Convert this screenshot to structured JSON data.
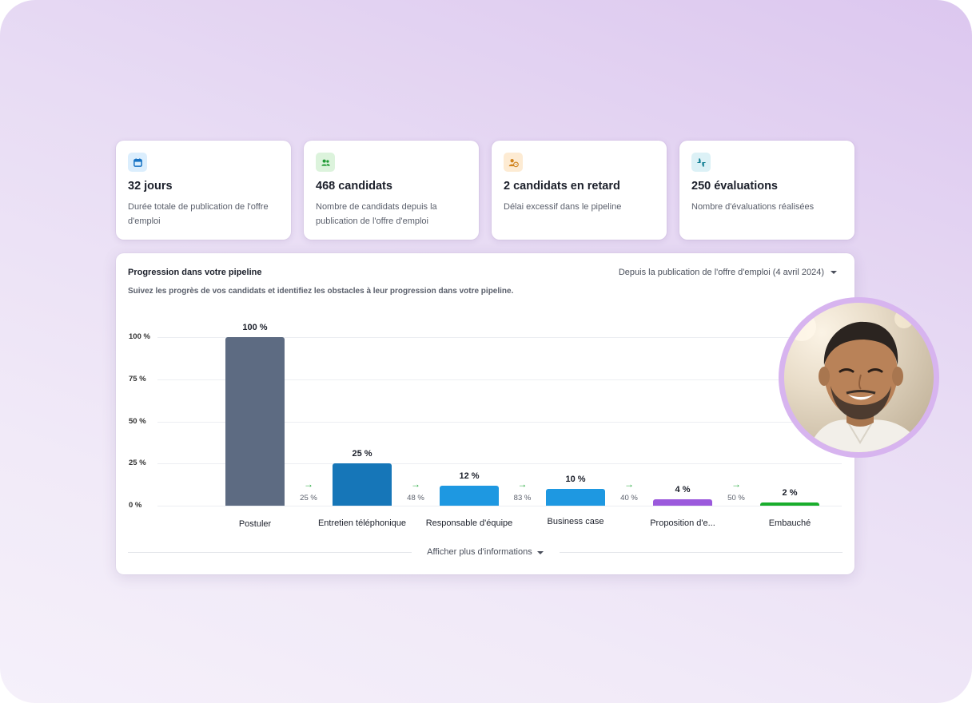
{
  "cards": [
    {
      "icon": "calendar-icon",
      "icon_bg": "#dbeefd",
      "icon_color": "#1773c4",
      "title": "32 jours",
      "desc": "Durée totale de publication de l'offre d'emploi"
    },
    {
      "icon": "users-icon",
      "icon_bg": "#dcf3dc",
      "icon_color": "#1f9a34",
      "title": "468 candidats",
      "desc": "Nombre de candidats depuis la publication de l'offre d'emploi"
    },
    {
      "icon": "user-clock-icon",
      "icon_bg": "#fdebd3",
      "icon_color": "#d1831b",
      "title": "2 candidats en retard",
      "desc": "Délai excessif dans le pipeline"
    },
    {
      "icon": "thumbs-icon",
      "icon_bg": "#dcf1f6",
      "icon_color": "#127f94",
      "title": "250 évaluations",
      "desc": "Nombre d'évaluations réalisées"
    }
  ],
  "panel": {
    "title": "Progression dans votre pipeline",
    "subtitle": "Suivez les progrès de vos candidats et identifiez les obstacles à leur progression dans votre pipeline.",
    "range_label": "Depuis la publication de l'offre d'emploi (4 avril 2024)",
    "more_label": "Afficher plus d'informations"
  },
  "chart_data": {
    "type": "bar",
    "ylim": [
      0,
      100
    ],
    "yticks": [
      "100 %",
      "75 %",
      "50 %",
      "25 %",
      "0 %"
    ],
    "ytick_values": [
      100,
      75,
      50,
      25,
      0
    ],
    "categories": [
      "Postuler",
      "Entretien téléphonique",
      "Responsable d'équipe",
      "Business case",
      "Proposition d'e...",
      "Embauché"
    ],
    "values": [
      100,
      25,
      12,
      10,
      4,
      2
    ],
    "value_labels": [
      "100 %",
      "25 %",
      "12 %",
      "10 %",
      "4 %",
      "2 %"
    ],
    "colors": [
      "#5d6b82",
      "#1676b8",
      "#1e98e1",
      "#1e98e1",
      "#9b59dc",
      "#19ad2c"
    ],
    "conversions": [
      "25 %",
      "48 %",
      "83 %",
      "40 %",
      "50 %"
    ]
  }
}
